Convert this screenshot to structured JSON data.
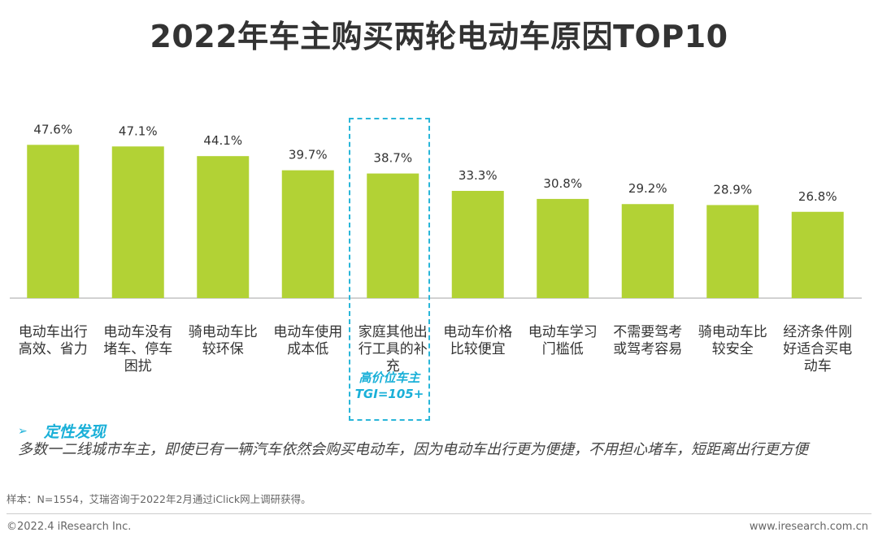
{
  "title": "2022年车主购买两轮电动车原因TOP10",
  "chart_data": {
    "type": "bar",
    "title": "2022年车主购买两轮电动车原因TOP10",
    "categories": [
      [
        "电动车出行",
        "高效、省力"
      ],
      [
        "电动车没有",
        "堵车、停车",
        "困扰"
      ],
      [
        "骑电动车比",
        "较环保"
      ],
      [
        "电动车使用",
        "成本低"
      ],
      [
        "家庭其他出",
        "行工具的补",
        "充"
      ],
      [
        "电动车价格",
        "比较便宜"
      ],
      [
        "电动车学习",
        "门槛低"
      ],
      [
        "不需要驾考",
        "或驾考容易"
      ],
      [
        "骑电动车比",
        "较安全"
      ],
      [
        "经济条件刚",
        "好适合买电",
        "动车"
      ]
    ],
    "values": [
      47.6,
      47.1,
      44.1,
      39.7,
      38.7,
      33.3,
      30.8,
      29.2,
      28.9,
      26.8
    ],
    "value_labels": [
      "47.6%",
      "47.1%",
      "44.1%",
      "39.7%",
      "38.7%",
      "33.3%",
      "30.8%",
      "29.2%",
      "28.9%",
      "26.8%"
    ],
    "ylim": [
      0,
      56
    ],
    "bar_color": "#b2d235",
    "highlight_index": 4,
    "highlight_color": "#29b6d9"
  },
  "highlight_note": [
    "高价位车主",
    "TGI=105+"
  ],
  "insight": {
    "arrow": "➢",
    "heading": "定性发现",
    "body": "多数一二线城市车主，即使已有一辆汽车依然会购买电动车，因为电动车出行更为便捷，不用担心堵车，短距离出行更方便"
  },
  "sample_note": "样本：N=1554，艾瑞咨询于2022年2月通过iClick网上调研获得。",
  "footer": {
    "copyright": "©2022.4 iResearch Inc.",
    "website": "www.iresearch.com.cn"
  }
}
